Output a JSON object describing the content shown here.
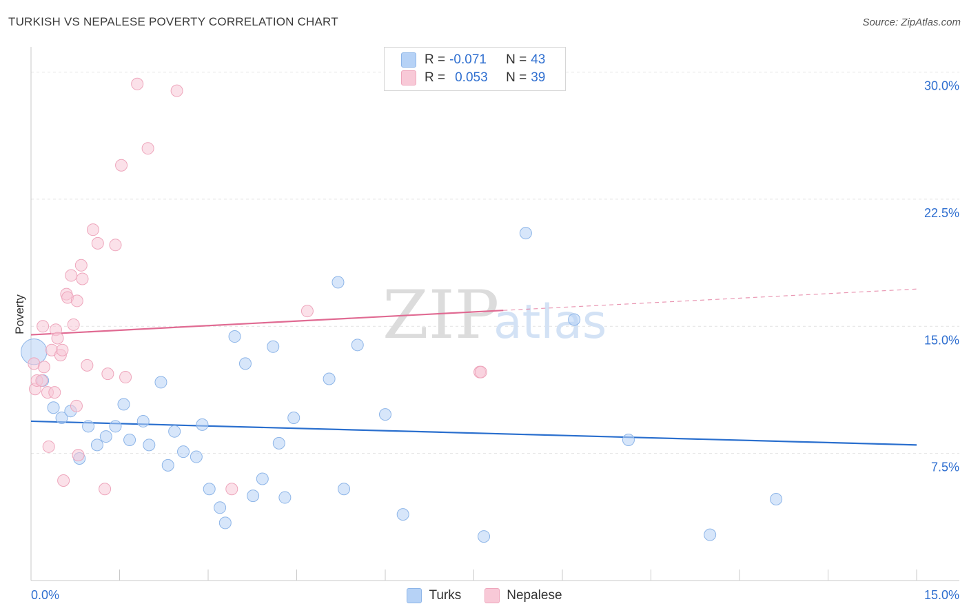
{
  "title": "TURKISH VS NEPALESE POVERTY CORRELATION CHART",
  "source": "Source: ZipAtlas.com",
  "watermark": {
    "zip": "ZIP",
    "atlas": "atlas"
  },
  "stats_box": {
    "rows": [
      {
        "r_label": "R =",
        "r_value": "-0.071",
        "n_label": "N =",
        "n_value": "43",
        "color": "#b6d2f6"
      },
      {
        "r_label": "R =",
        "r_value": "0.053",
        "n_label": "N =",
        "n_value": "39",
        "color": "#f8c9d7"
      }
    ]
  },
  "legend": {
    "series1": "Turks",
    "series2": "Nepalese"
  },
  "chart_data": {
    "type": "scatter",
    "ylabel": "Poverty",
    "xlabel": "",
    "xlim": [
      0,
      15
    ],
    "ylim": [
      0,
      31
    ],
    "x_tick_labels": [
      "0.0%",
      "15.0%"
    ],
    "y_tick_labels": [
      {
        "value": 7.5,
        "label": "7.5%"
      },
      {
        "value": 15,
        "label": "15.0%"
      },
      {
        "value": 22.5,
        "label": "22.5%"
      },
      {
        "value": 30,
        "label": "30.0%"
      }
    ],
    "series": [
      {
        "name": "Turks",
        "color": "#b6d2f6",
        "stroke": "#8db5e8",
        "trend_color": "#2a6fce",
        "trend": {
          "x1": 0,
          "y1": 9.4,
          "x2": 15,
          "y2": 8.0,
          "solid_to": 15
        },
        "points": [
          [
            0.05,
            13.5,
            2.2
          ],
          [
            0.2,
            11.8,
            1
          ],
          [
            0.38,
            10.2,
            1
          ],
          [
            0.52,
            9.6,
            1
          ],
          [
            0.67,
            10.0,
            1
          ],
          [
            0.82,
            7.2,
            1
          ],
          [
            0.97,
            9.1,
            1
          ],
          [
            1.12,
            8.0,
            1
          ],
          [
            1.27,
            8.5,
            1
          ],
          [
            1.43,
            9.1,
            1
          ],
          [
            1.57,
            10.4,
            1
          ],
          [
            1.67,
            8.3,
            1
          ],
          [
            1.9,
            9.4,
            1
          ],
          [
            2.0,
            8.0,
            1
          ],
          [
            2.2,
            11.7,
            1
          ],
          [
            2.32,
            6.8,
            1
          ],
          [
            2.43,
            8.8,
            1
          ],
          [
            2.58,
            7.6,
            1
          ],
          [
            2.8,
            7.3,
            1
          ],
          [
            2.9,
            9.2,
            1
          ],
          [
            3.02,
            5.4,
            1
          ],
          [
            3.2,
            4.3,
            1
          ],
          [
            3.29,
            3.4,
            1
          ],
          [
            3.45,
            14.4,
            1
          ],
          [
            3.63,
            12.8,
            1
          ],
          [
            3.76,
            5.0,
            1
          ],
          [
            3.92,
            6.0,
            1
          ],
          [
            4.1,
            13.8,
            1
          ],
          [
            4.2,
            8.1,
            1
          ],
          [
            4.3,
            4.9,
            1
          ],
          [
            4.45,
            9.6,
            1
          ],
          [
            5.05,
            11.9,
            1
          ],
          [
            5.2,
            17.6,
            1
          ],
          [
            5.3,
            5.4,
            1
          ],
          [
            5.53,
            13.9,
            1
          ],
          [
            6.0,
            9.8,
            1
          ],
          [
            6.3,
            3.9,
            1
          ],
          [
            7.67,
            2.6,
            1
          ],
          [
            8.38,
            20.5,
            1
          ],
          [
            9.2,
            15.4,
            1
          ],
          [
            10.12,
            8.3,
            1
          ],
          [
            11.5,
            2.7,
            1
          ],
          [
            12.62,
            4.8,
            1
          ]
        ]
      },
      {
        "name": "Nepalese",
        "color": "#f8c9d7",
        "stroke": "#eea6bc",
        "trend_color": "#e06a92",
        "trend": {
          "x1": 0,
          "y1": 14.5,
          "x2": 15,
          "y2": 17.2,
          "solid_to": 8.0
        },
        "points": [
          [
            0.05,
            12.8,
            1
          ],
          [
            0.07,
            11.3,
            1
          ],
          [
            0.1,
            11.8,
            1
          ],
          [
            0.18,
            11.8,
            1
          ],
          [
            0.2,
            15.0,
            1
          ],
          [
            0.22,
            12.6,
            1
          ],
          [
            0.28,
            11.1,
            1
          ],
          [
            0.3,
            7.9,
            1
          ],
          [
            0.35,
            13.6,
            1
          ],
          [
            0.4,
            11.1,
            1
          ],
          [
            0.42,
            14.8,
            1
          ],
          [
            0.45,
            14.3,
            1
          ],
          [
            0.5,
            13.3,
            1
          ],
          [
            0.53,
            13.6,
            1
          ],
          [
            0.55,
            5.9,
            1
          ],
          [
            0.6,
            16.9,
            1
          ],
          [
            0.62,
            16.7,
            1
          ],
          [
            0.68,
            18.0,
            1
          ],
          [
            0.72,
            15.1,
            1
          ],
          [
            0.77,
            10.3,
            1
          ],
          [
            0.78,
            16.5,
            1
          ],
          [
            0.8,
            7.4,
            1
          ],
          [
            0.85,
            18.6,
            1
          ],
          [
            0.87,
            17.8,
            1
          ],
          [
            0.95,
            12.7,
            1
          ],
          [
            1.05,
            20.7,
            1
          ],
          [
            1.13,
            19.9,
            1
          ],
          [
            1.25,
            5.4,
            1
          ],
          [
            1.3,
            12.2,
            1
          ],
          [
            1.43,
            19.8,
            1
          ],
          [
            1.53,
            24.5,
            1
          ],
          [
            1.6,
            12.0,
            1
          ],
          [
            1.8,
            29.3,
            1
          ],
          [
            1.98,
            25.5,
            1
          ],
          [
            2.47,
            28.9,
            1
          ],
          [
            3.4,
            5.4,
            1
          ],
          [
            4.68,
            15.9,
            1
          ],
          [
            7.6,
            12.3,
            1
          ],
          [
            7.62,
            12.3,
            1
          ]
        ]
      }
    ]
  }
}
